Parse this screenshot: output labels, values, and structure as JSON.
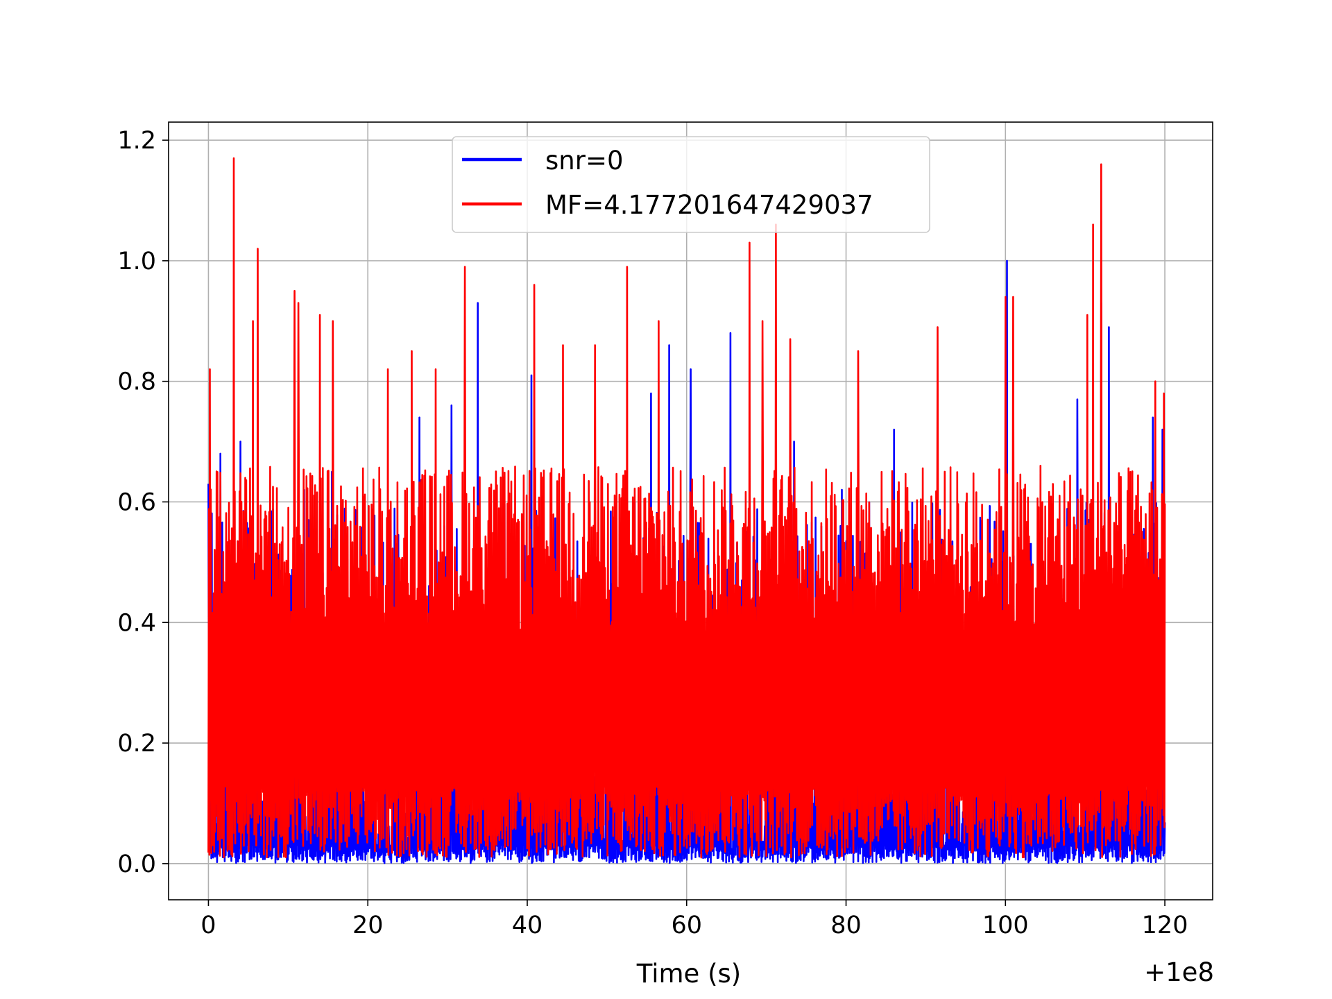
{
  "chart_data": {
    "type": "line",
    "xlabel": "Time (s)",
    "x_offset_label": "+1e8",
    "xlim": [
      -5,
      126
    ],
    "ylim": [
      -0.06,
      1.23
    ],
    "xticks": [
      0,
      20,
      40,
      60,
      80,
      100,
      120
    ],
    "xtick_labels": [
      "0",
      "20",
      "40",
      "60",
      "80",
      "100",
      "120"
    ],
    "yticks": [
      0.0,
      0.2,
      0.4,
      0.6,
      0.8,
      1.0,
      1.2
    ],
    "ytick_labels": [
      "0.0",
      "0.2",
      "0.4",
      "0.6",
      "0.8",
      "1.0",
      "1.2"
    ],
    "grid": true,
    "legend_position": "top-center",
    "x_range": [
      0,
      120
    ],
    "series": [
      {
        "name": "snr=0",
        "color": "#0000ff",
        "peaks": [
          [
            0.0,
            0.63
          ],
          [
            1.5,
            0.68
          ],
          [
            4.0,
            0.7
          ],
          [
            12.0,
            0.62
          ],
          [
            15.5,
            0.65
          ],
          [
            26.5,
            0.74
          ],
          [
            30.5,
            0.76
          ],
          [
            33.8,
            0.93
          ],
          [
            40.5,
            0.81
          ],
          [
            55.5,
            0.78
          ],
          [
            57.8,
            0.86
          ],
          [
            60.5,
            0.82
          ],
          [
            65.5,
            0.88
          ],
          [
            73.5,
            0.7
          ],
          [
            79.5,
            0.62
          ],
          [
            86.0,
            0.72
          ],
          [
            100.2,
            1.0
          ],
          [
            109.0,
            0.77
          ],
          [
            112.0,
            0.93
          ],
          [
            113.0,
            0.89
          ],
          [
            118.5,
            0.74
          ],
          [
            119.7,
            0.72
          ]
        ]
      },
      {
        "name": "MF=4.177201647429037",
        "color": "#ff0000",
        "peaks": [
          [
            0.2,
            0.82
          ],
          [
            3.2,
            1.17
          ],
          [
            5.6,
            0.9
          ],
          [
            6.2,
            1.02
          ],
          [
            10.8,
            0.95
          ],
          [
            11.3,
            0.93
          ],
          [
            14.0,
            0.91
          ],
          [
            15.6,
            0.9
          ],
          [
            22.5,
            0.82
          ],
          [
            25.5,
            0.85
          ],
          [
            28.5,
            0.82
          ],
          [
            32.2,
            0.99
          ],
          [
            40.9,
            0.96
          ],
          [
            44.5,
            0.86
          ],
          [
            48.5,
            0.86
          ],
          [
            52.5,
            0.99
          ],
          [
            56.5,
            0.9
          ],
          [
            67.9,
            1.03
          ],
          [
            69.5,
            0.9
          ],
          [
            71.2,
            1.06
          ],
          [
            73.0,
            0.87
          ],
          [
            81.5,
            0.85
          ],
          [
            91.5,
            0.89
          ],
          [
            100.0,
            0.94
          ],
          [
            101.0,
            0.94
          ],
          [
            110.3,
            0.91
          ],
          [
            111.0,
            1.06
          ],
          [
            112.0,
            1.16
          ],
          [
            118.8,
            0.8
          ],
          [
            119.9,
            0.78
          ]
        ],
        "typical_max": 0.66,
        "typical_min": 0.01
      }
    ]
  }
}
